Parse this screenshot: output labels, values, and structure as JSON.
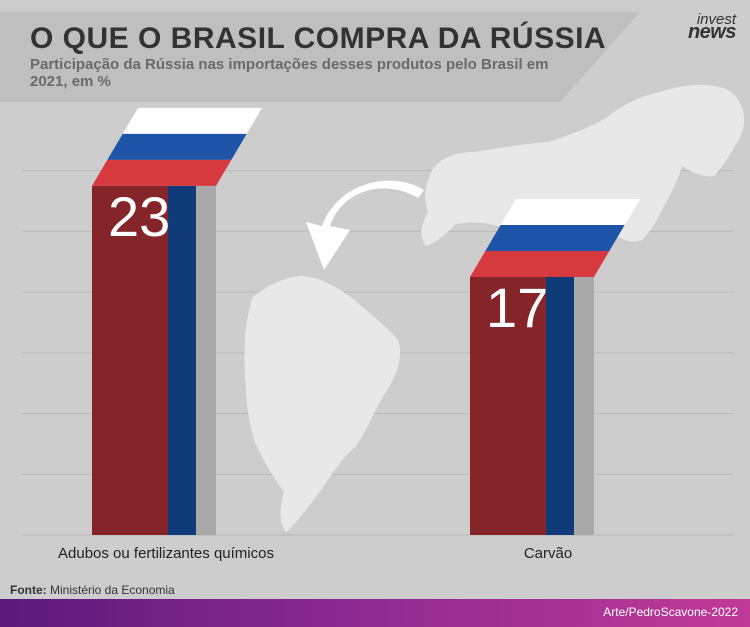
{
  "header": {
    "title": "O QUE O BRASIL COMPRA DA RÚSSIA",
    "subtitle": "Participação da Rússia nas importações desses produtos pelo Brasil em 2021, em %"
  },
  "logo": {
    "top": "invest",
    "bottom": "news"
  },
  "footer": {
    "source_label": "Fonte:",
    "source_text": "Ministério da Economia",
    "credit": "Arte/PedroScavone-2022"
  },
  "colors": {
    "background": "#cdcdcd",
    "bar_red": "#85252a",
    "bar_red_bright": "#d63a3f",
    "bar_blue": "#0f3b78",
    "bar_side": "#a9a9a9",
    "flag_white": "#ffffff",
    "flag_blue": "#1f55a8",
    "flag_red": "#d63a3f",
    "map": "#e8e8e8",
    "gridline": "#b8b8b8"
  },
  "chart_data": {
    "type": "bar",
    "title": "O QUE O BRASIL COMPRA DA RÚSSIA",
    "subtitle": "Participação da Rússia nas importações desses produtos pelo Brasil em 2021, em %",
    "categories": [
      "Adubos ou fertilizantes químicos",
      "Carvão"
    ],
    "values": [
      23,
      17
    ],
    "xlabel": "",
    "ylabel": "",
    "ylim": [
      0,
      28
    ],
    "grid": true,
    "legend": "none"
  }
}
